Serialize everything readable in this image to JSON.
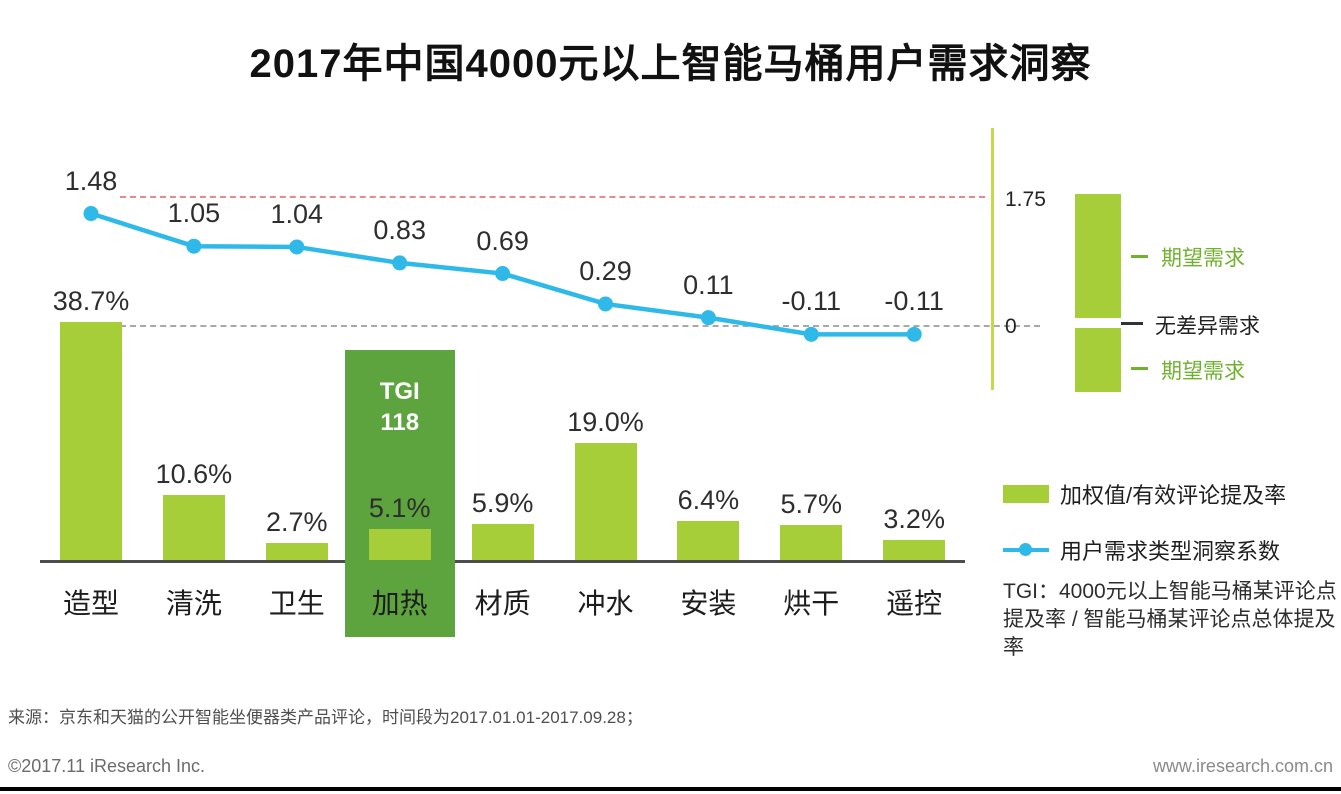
{
  "title": "2017年中国4000元以上智能马桶用户需求洞察",
  "chart_data": {
    "type": "bar",
    "subtype": "bar+line combo",
    "categories": [
      "造型",
      "清洗",
      "卫生",
      "加热",
      "材质",
      "冲水",
      "安装",
      "烘干",
      "遥控"
    ],
    "series": [
      {
        "name": "加权值/有效评论提及率",
        "type": "bar",
        "unit": "%",
        "values": [
          38.7,
          10.6,
          2.7,
          5.1,
          5.9,
          19.0,
          6.4,
          5.7,
          3.2
        ],
        "labels": [
          "38.7%",
          "10.6%",
          "2.7%",
          "5.1%",
          "5.9%",
          "19.0%",
          "6.4%",
          "5.7%",
          "3.2%"
        ]
      },
      {
        "name": "用户需求类型洞察系数",
        "type": "line",
        "values": [
          1.48,
          1.05,
          1.04,
          0.83,
          0.69,
          0.29,
          0.11,
          -0.11,
          -0.11
        ],
        "labels": [
          "1.48",
          "1.05",
          "1.04",
          "0.83",
          "0.69",
          "0.29",
          "0.11",
          "-0.11",
          "-0.11"
        ]
      }
    ],
    "line_axis": {
      "reference_top": 1.75,
      "reference_zero": 0
    },
    "highlight": {
      "category": "加热",
      "tgi_label": "TGI",
      "tgi_value": "118"
    },
    "legend_position": "right",
    "grid": "dashed reference lines at 1.75 (red) and 0 (gray)"
  },
  "right_panel": {
    "top_label": "1.75",
    "zero_label": "0",
    "annotations": [
      {
        "text": "期望需求",
        "color": "green"
      },
      {
        "text": "无差异需求",
        "color": "black"
      },
      {
        "text": "期望需求",
        "color": "green"
      }
    ]
  },
  "legend": {
    "bar_label": "加权值/有效评论提及率",
    "line_label": "用户需求类型洞察系数"
  },
  "tgi_note": "TGI：4000元以上智能马桶某评论点提及率 / 智能马桶某评论点总体提及率",
  "source": "来源：京东和天猫的公开智能坐便器类产品评论，时间段为2017.01.01-2017.09.28；",
  "footer": {
    "left": "©2017.11 iResearch Inc.",
    "right": "www.iresearch.com.cn"
  },
  "colors": {
    "bar": "#a6ce39",
    "hi": "#5da33e",
    "line": "#2fb9e9",
    "refred": "#e58b8b",
    "refgray": "#a8a8a8",
    "paxis": "#c5d94b",
    "greentext": "#70b12f"
  }
}
